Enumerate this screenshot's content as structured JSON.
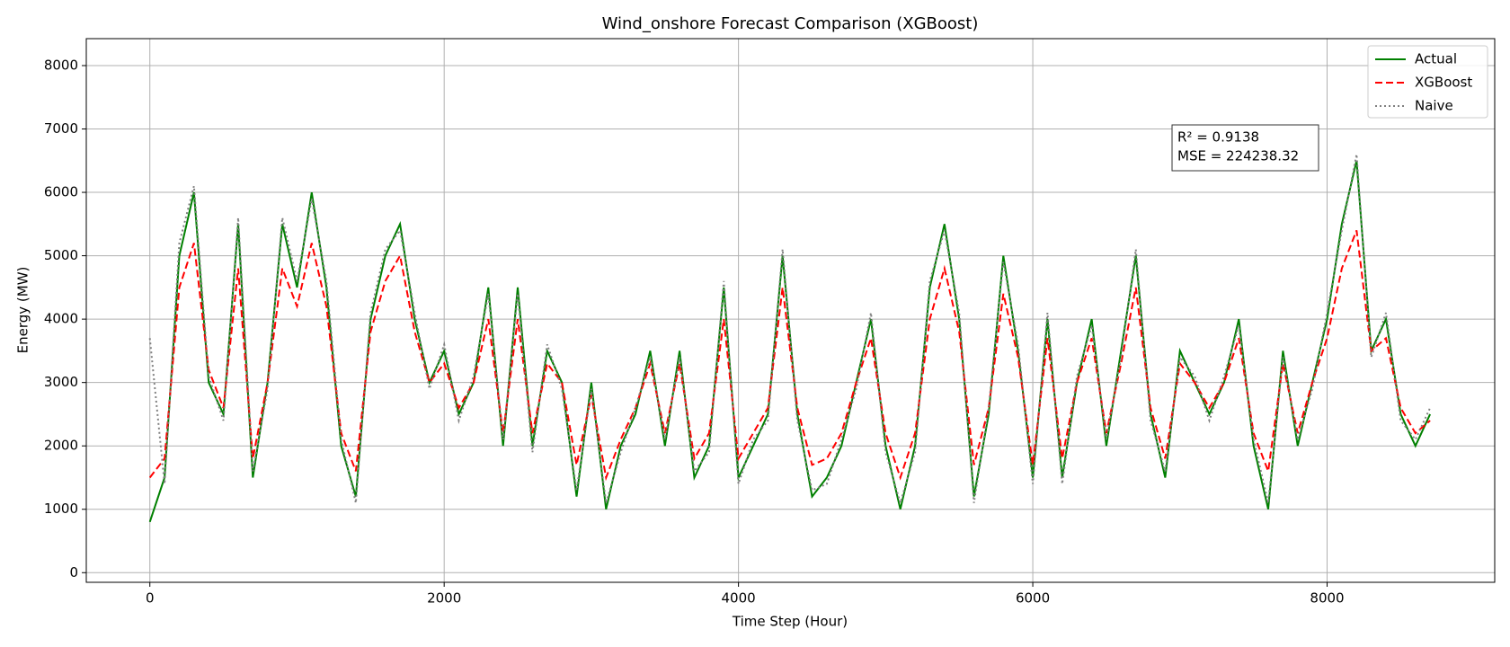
{
  "chart_data": {
    "type": "line",
    "title": "Wind_onshore Forecast Comparison (XGBoost)",
    "xlabel": "Time Step (Hour)",
    "ylabel": "Energy (MW)",
    "x": [
      0,
      100,
      200,
      300,
      400,
      500,
      600,
      700,
      800,
      900,
      1000,
      1100,
      1200,
      1300,
      1400,
      1500,
      1600,
      1700,
      1800,
      1900,
      2000,
      2100,
      2200,
      2300,
      2400,
      2500,
      2600,
      2700,
      2800,
      2900,
      3000,
      3100,
      3200,
      3300,
      3400,
      3500,
      3600,
      3700,
      3800,
      3900,
      4000,
      4100,
      4200,
      4300,
      4400,
      4500,
      4600,
      4700,
      4800,
      4900,
      5000,
      5100,
      5200,
      5300,
      5400,
      5500,
      5600,
      5700,
      5800,
      5900,
      6000,
      6100,
      6200,
      6300,
      6400,
      6500,
      6600,
      6700,
      6800,
      6900,
      7000,
      7100,
      7200,
      7300,
      7400,
      7500,
      7600,
      7700,
      7800,
      7900,
      8000,
      8100,
      8200,
      8300,
      8400,
      8500,
      8600,
      8700
    ],
    "series": [
      {
        "name": "Actual",
        "color": "green",
        "linestyle": "solid",
        "values": [
          800,
          1500,
          5000,
          6000,
          3000,
          2500,
          5500,
          1500,
          3000,
          5500,
          4500,
          6000,
          4500,
          2000,
          1200,
          4000,
          5000,
          5500,
          4000,
          3000,
          3500,
          2500,
          3000,
          4500,
          2000,
          4500,
          2000,
          3500,
          3000,
          1200,
          3000,
          1000,
          2000,
          2500,
          3500,
          2000,
          3500,
          1500,
          2000,
          4500,
          1500,
          2000,
          2500,
          5000,
          2500,
          1200,
          1500,
          2000,
          3000,
          4000,
          2000,
          1000,
          2000,
          4500,
          5500,
          4000,
          1200,
          2500,
          5000,
          3500,
          1500,
          4000,
          1500,
          3000,
          4000,
          2000,
          3500,
          5000,
          2500,
          1500,
          3500,
          3000,
          2500,
          3000,
          4000,
          2000,
          1000,
          3500,
          2000,
          3000,
          4000,
          5500,
          6500,
          3500,
          4000,
          2500,
          2000,
          2500
        ]
      },
      {
        "name": "XGBoost",
        "color": "red",
        "linestyle": "dashed",
        "values": [
          1500,
          1800,
          4500,
          5200,
          3200,
          2600,
          4800,
          1800,
          3000,
          4800,
          4200,
          5200,
          4200,
          2200,
          1600,
          3800,
          4600,
          5000,
          3800,
          3000,
          3300,
          2600,
          3000,
          4000,
          2200,
          4000,
          2200,
          3300,
          3000,
          1700,
          2800,
          1500,
          2100,
          2600,
          3300,
          2200,
          3300,
          1800,
          2200,
          4000,
          1800,
          2200,
          2600,
          4500,
          2600,
          1700,
          1800,
          2200,
          3000,
          3700,
          2200,
          1500,
          2200,
          4000,
          4800,
          3800,
          1700,
          2600,
          4400,
          3400,
          1700,
          3700,
          1800,
          3000,
          3700,
          2200,
          3300,
          4500,
          2600,
          1800,
          3300,
          3000,
          2600,
          3000,
          3700,
          2200,
          1600,
          3300,
          2200,
          3000,
          3700,
          4800,
          5400,
          3500,
          3700,
          2600,
          2200,
          2400
        ]
      },
      {
        "name": "Naive",
        "color": "gray",
        "linestyle": "dotted",
        "values": [
          3700,
          1400,
          5200,
          6100,
          3100,
          2400,
          5600,
          1600,
          2900,
          5600,
          4600,
          5900,
          4600,
          2100,
          1100,
          4100,
          5100,
          5400,
          4100,
          2900,
          3600,
          2400,
          3100,
          4400,
          2100,
          4400,
          1900,
          3600,
          2900,
          1300,
          2900,
          1100,
          1900,
          2600,
          3400,
          2100,
          3400,
          1600,
          1900,
          4600,
          1400,
          2100,
          2400,
          5100,
          2400,
          1300,
          1400,
          2100,
          2900,
          4100,
          1900,
          1100,
          1900,
          4600,
          5400,
          4100,
          1100,
          2600,
          4900,
          3600,
          1400,
          4100,
          1400,
          3100,
          3900,
          2100,
          3400,
          5100,
          2400,
          1600,
          3400,
          3100,
          2400,
          3100,
          3900,
          2100,
          1100,
          3400,
          2100,
          2900,
          4100,
          5400,
          6600,
          3400,
          4100,
          2400,
          2100,
          2600
        ]
      }
    ],
    "xlim": [
      -432,
      9139
    ],
    "ylim": [
      -152,
      8425
    ],
    "xticks": [
      0,
      2000,
      4000,
      6000,
      8000
    ],
    "yticks": [
      0,
      1000,
      2000,
      3000,
      4000,
      5000,
      6000,
      7000,
      8000
    ],
    "grid": true,
    "legend": "upper right",
    "annotations": [
      "R² = 0.9138",
      "MSE = 224238.32"
    ]
  }
}
